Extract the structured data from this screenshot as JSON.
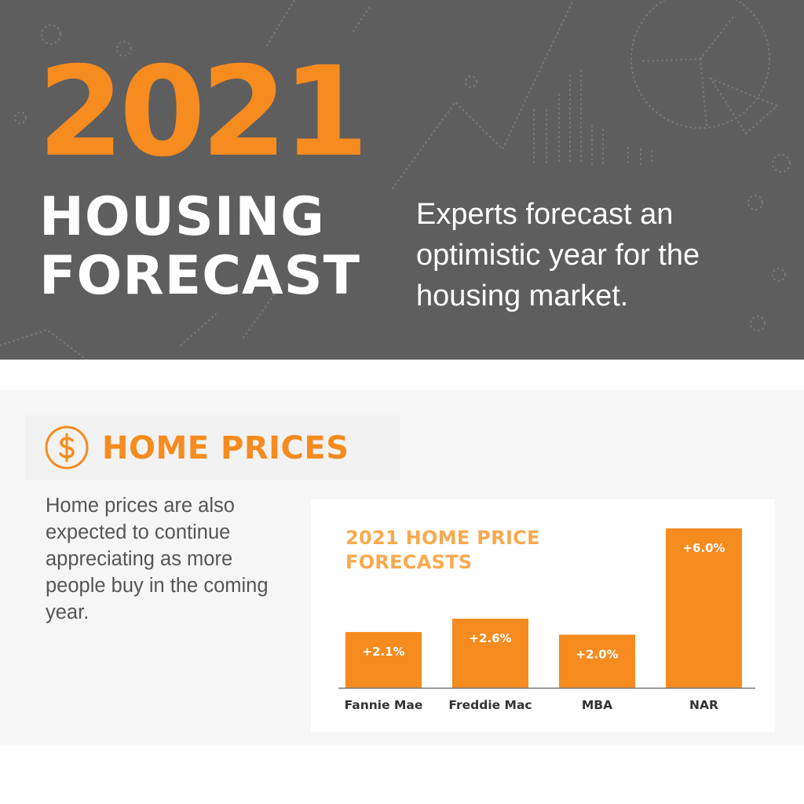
{
  "header": {
    "year": "2021",
    "title_line1": "HOUSING",
    "title_line2": "FORECAST",
    "subtitle": "Experts forecast an optimistic year for the housing market."
  },
  "section": {
    "icon": "dollar-sign-circle-icon",
    "title": "HOME PRICES",
    "body": "Home prices are also expected to continue appreciating as more people buy in the coming year."
  },
  "colors": {
    "accent": "#f68b1f",
    "chart_title": "#f8a94f",
    "header_bg": "#5e5e5e",
    "panel_bg": "#f6f6f6"
  },
  "chart_data": {
    "type": "bar",
    "title": "2021 HOME PRICE FORECASTS",
    "categories": [
      "Fannie Mae",
      "Freddie Mac",
      "MBA",
      "NAR"
    ],
    "values": [
      2.1,
      2.6,
      2.0,
      6.0
    ],
    "value_labels": [
      "+2.1%",
      "+2.6%",
      "+2.0%",
      "+6.0%"
    ],
    "xlabel": "",
    "ylabel": "",
    "ylim": [
      0,
      6.0
    ],
    "grid": false,
    "legend": "none"
  }
}
